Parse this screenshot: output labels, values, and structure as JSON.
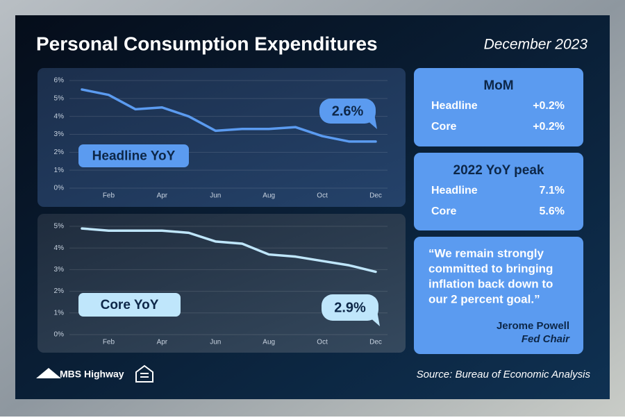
{
  "title": "Personal Consumption Expenditures",
  "date": "December 2023",
  "chart_data": [
    {
      "type": "line",
      "label": "Headline YoY",
      "callout": "2.6%",
      "categories": [
        null,
        "Feb",
        null,
        "Apr",
        null,
        "Jun",
        null,
        "Aug",
        null,
        "Oct",
        null,
        "Dec"
      ],
      "values": [
        5.5,
        5.2,
        4.4,
        4.5,
        4.0,
        3.2,
        3.3,
        3.3,
        3.4,
        2.9,
        2.6,
        2.6
      ],
      "color": "#5b9bf0",
      "ylim": [
        0,
        6
      ],
      "yticks": [
        {
          "value": 0,
          "label": "0%"
        },
        {
          "value": 1,
          "label": "1%"
        },
        {
          "value": 2,
          "label": "2%"
        },
        {
          "value": 3,
          "label": "3%"
        },
        {
          "value": 4,
          "label": "4%"
        },
        {
          "value": 5,
          "label": "5%"
        },
        {
          "value": 6,
          "label": "6%"
        }
      ],
      "grid": true
    },
    {
      "type": "line",
      "label": "Core YoY",
      "callout": "2.9%",
      "categories": [
        null,
        "Feb",
        null,
        "Apr",
        null,
        "Jun",
        null,
        "Aug",
        null,
        "Oct",
        null,
        "Dec"
      ],
      "values": [
        4.9,
        4.8,
        4.8,
        4.8,
        4.7,
        4.3,
        4.2,
        3.7,
        3.6,
        3.4,
        3.2,
        2.9
      ],
      "color": "#bfe6fb",
      "ylim": [
        0,
        5
      ],
      "yticks": [
        {
          "value": 0,
          "label": "0%"
        },
        {
          "value": 1,
          "label": "1%"
        },
        {
          "value": 2,
          "label": "2%"
        },
        {
          "value": 3,
          "label": "3%"
        },
        {
          "value": 4,
          "label": "4%"
        },
        {
          "value": 5,
          "label": "5%"
        }
      ],
      "grid": true
    }
  ],
  "panels": [
    {
      "title": "MoM",
      "rows": [
        [
          "Headline",
          "+0.2%"
        ],
        [
          "Core",
          "+0.2%"
        ]
      ]
    },
    {
      "title": "2022 YoY peak",
      "rows": [
        [
          "Headline",
          "7.1%"
        ],
        [
          "Core",
          "5.6%"
        ]
      ]
    }
  ],
  "quote": {
    "lines": [
      "“We remain strongly",
      "committed to bringing",
      "inflation back down to",
      "our 2 percent goal.”"
    ],
    "author": "Jerome Powell",
    "role": "Fed Chair"
  },
  "logo": "MBS Highway",
  "source": "Source: Bureau of Economic Analysis"
}
